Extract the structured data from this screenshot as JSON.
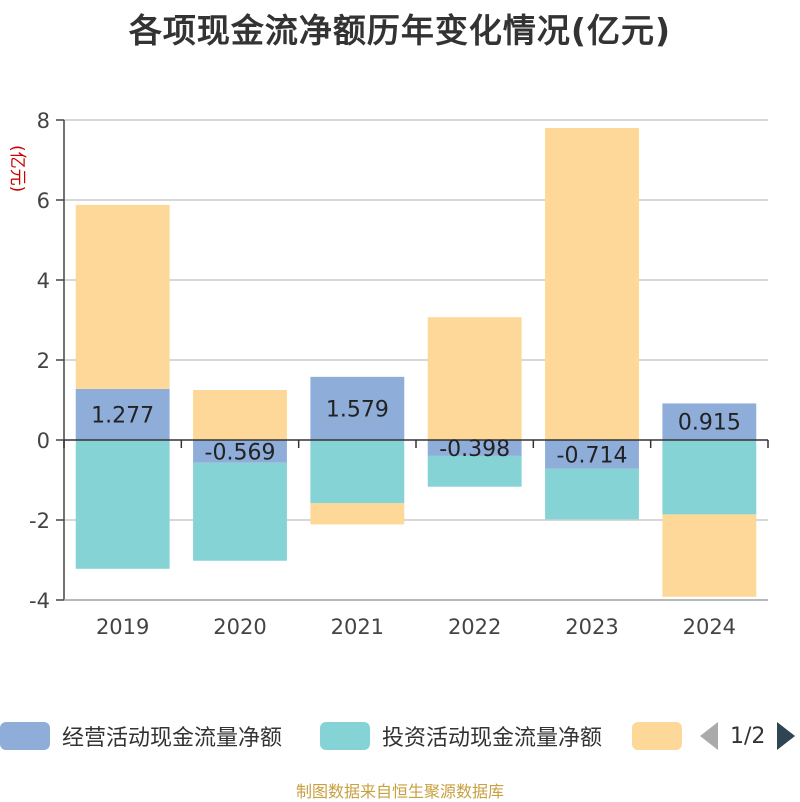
{
  "chart_data": {
    "type": "bar",
    "stacked": true,
    "title": "各项现金流净额历年变化情况(亿元)",
    "ylabel": "(亿元)",
    "categories": [
      "2019",
      "2020",
      "2021",
      "2022",
      "2023",
      "2024"
    ],
    "ylim": [
      -4,
      8
    ],
    "yticks": [
      -4,
      -2,
      0,
      2,
      4,
      6,
      8
    ],
    "grid": true,
    "series": [
      {
        "name": "经营活动现金流量净额",
        "color": "#8fadd9",
        "values": [
          1.277,
          -0.569,
          1.579,
          -0.398,
          -0.714,
          0.915
        ],
        "show_labels": true
      },
      {
        "name": "投资活动现金流量净额",
        "color": "#86d3d6",
        "values": [
          -3.22,
          -2.45,
          -1.58,
          -0.77,
          -1.27,
          -1.86
        ],
        "show_labels": false
      },
      {
        "name": "",
        "color": "#fed898",
        "values": [
          4.6,
          1.25,
          -0.53,
          3.07,
          7.8,
          -2.06
        ],
        "show_labels": false
      }
    ]
  },
  "legend": {
    "pager_text": "1/2"
  },
  "source_note": "制图数据来自恒生聚源数据库"
}
